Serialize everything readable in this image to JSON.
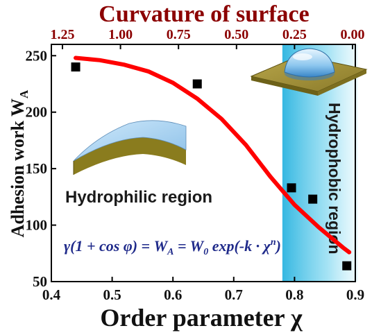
{
  "chart_data": {
    "type": "scatter",
    "title": "",
    "xlabel": "Order parameter χ",
    "ylabel": "Adhesion work W_A",
    "top_xlabel": "Curvature of surface",
    "xlim": [
      0.4,
      0.9
    ],
    "ylim": [
      50,
      260
    ],
    "x_ticks": [
      "0.4",
      "0.5",
      "0.6",
      "0.7",
      "0.8",
      "0.9"
    ],
    "y_ticks": [
      "50",
      "100",
      "150",
      "200",
      "250"
    ],
    "top_ticks": [
      "1.25",
      "1.00",
      "0.75",
      "0.50",
      "0.25",
      "0.00"
    ],
    "series": [
      {
        "type": "scatter",
        "color": "#000000",
        "points": [
          {
            "x": 0.44,
            "y": 240
          },
          {
            "x": 0.64,
            "y": 225
          },
          {
            "x": 0.795,
            "y": 133
          },
          {
            "x": 0.83,
            "y": 123
          },
          {
            "x": 0.886,
            "y": 64
          }
        ]
      },
      {
        "type": "line",
        "color": "#ff0000",
        "points": [
          {
            "x": 0.44,
            "y": 248
          },
          {
            "x": 0.48,
            "y": 246
          },
          {
            "x": 0.52,
            "y": 242
          },
          {
            "x": 0.56,
            "y": 236
          },
          {
            "x": 0.6,
            "y": 226
          },
          {
            "x": 0.64,
            "y": 212
          },
          {
            "x": 0.68,
            "y": 194
          },
          {
            "x": 0.72,
            "y": 171
          },
          {
            "x": 0.76,
            "y": 143
          },
          {
            "x": 0.8,
            "y": 118
          },
          {
            "x": 0.84,
            "y": 98
          },
          {
            "x": 0.88,
            "y": 80
          },
          {
            "x": 0.89,
            "y": 76
          }
        ]
      }
    ],
    "regions": [
      {
        "label": "Hydrophilic region"
      },
      {
        "label": "Hydrophobic region",
        "x_range": [
          0.78,
          0.9
        ],
        "color": "#5bc8e8"
      }
    ],
    "equation": "γ(1 + cos φ) = W_A = W_0 exp(-k · χ^n)"
  },
  "labels": {
    "top_title": "Curvature of surface",
    "x_title": "Order parameter χ",
    "y_title_main": "Adhesion work W",
    "y_title_sub": "A",
    "hydrophilic": "Hydrophilic region",
    "hydrophobic_line1": "Hydro-",
    "hydrophobic_line2": "phobic",
    "hydrophobic_line3": "region",
    "equation_left": "γ(1 + cos φ) = W",
    "equation_sub1": "A",
    "equation_mid": " = W",
    "equation_sub2": "0",
    "equation_right": " exp(-k · χ",
    "equation_sup": "n",
    "equation_end": ")"
  }
}
